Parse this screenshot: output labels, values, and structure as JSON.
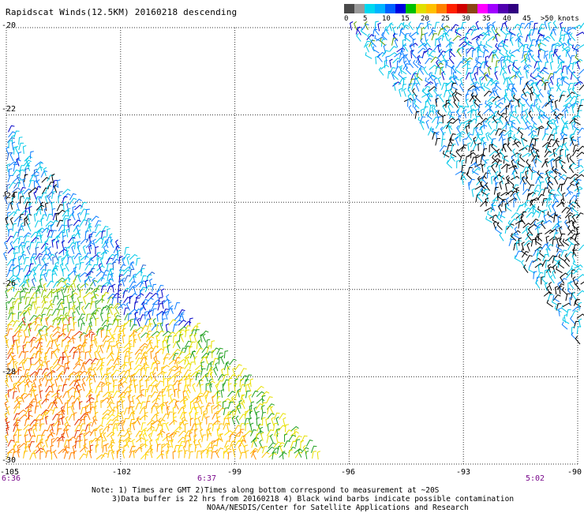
{
  "title": "Rapidscat Winds(12.5KM) 20160218 descending",
  "legend": {
    "labels": [
      "0",
      "5",
      "10",
      "15",
      "20",
      "25",
      "30",
      "35",
      "40",
      "45",
      ">50 knots"
    ],
    "colors": [
      "#4a4a4a",
      "#9a9a9a",
      "#00d8f0",
      "#00b4ff",
      "#0060ff",
      "#0000e0",
      "#00c000",
      "#e0e000",
      "#ffc000",
      "#ff8000",
      "#ff2000",
      "#d00000",
      "#8b4513",
      "#ff00ff",
      "#a000ff",
      "#5000b0",
      "#300080"
    ]
  },
  "map": {
    "lat_labels": [
      "-20",
      "-22",
      "-24",
      "-26",
      "-28",
      "-30"
    ],
    "lon_labels": [
      "-105",
      "-102",
      "-99",
      "-96",
      "-93",
      "-90"
    ],
    "time_labels": [
      "6:36",
      "6:37",
      "5:02"
    ],
    "lon_range": [
      -105,
      -90
    ],
    "lat_range": [
      -30,
      -20
    ],
    "contamination_color": "#000000"
  },
  "notes": {
    "line1": "Note: 1) Times are GMT 2)Times along bottom correspond to measurement at ~20S",
    "line2": "3)Data buffer is 22 hrs from 20160218 4) Black wind barbs indicate possible contamination",
    "line3": "NOAA/NESDIS/Center for Satellite Applications and Research"
  }
}
